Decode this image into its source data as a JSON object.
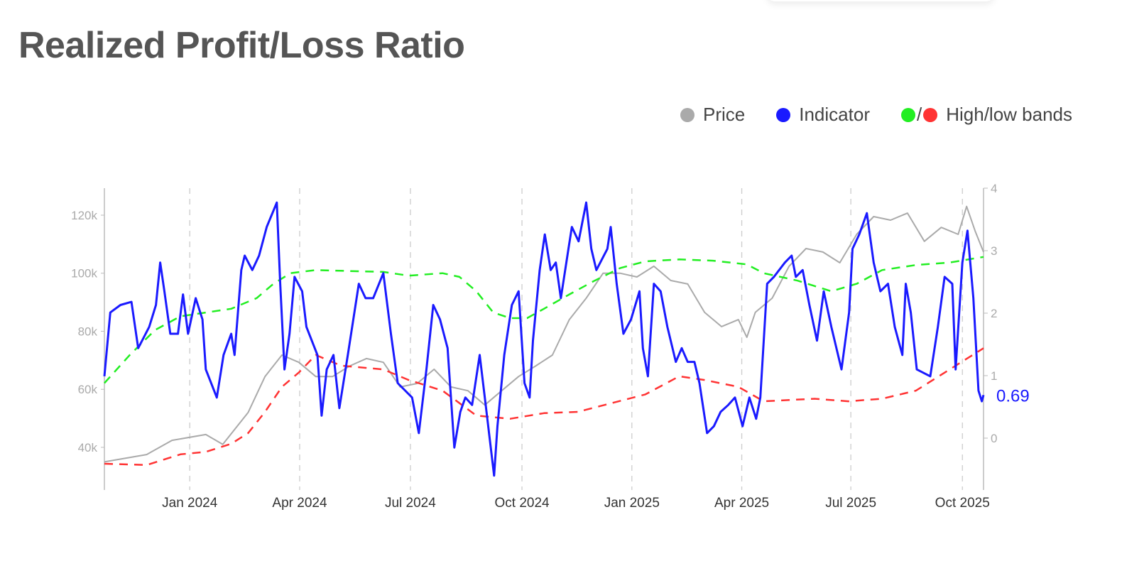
{
  "chart_data": {
    "type": "line",
    "title": "Realized Profit/Loss Ratio",
    "x_unit": "weeks since 2023-10-23",
    "xlim": [
      0,
      104
    ],
    "x_ticks": [
      {
        "x": 10.1,
        "label": "Jan 2024"
      },
      {
        "x": 23.1,
        "label": "Apr 2024"
      },
      {
        "x": 36.2,
        "label": "Jul 2024"
      },
      {
        "x": 49.4,
        "label": "Oct 2024"
      },
      {
        "x": 62.4,
        "label": "Jan 2025"
      },
      {
        "x": 75.4,
        "label": "Apr 2025"
      },
      {
        "x": 88.3,
        "label": "Jul 2025"
      },
      {
        "x": 101.5,
        "label": "Oct 2025"
      }
    ],
    "y_left": {
      "lim": [
        25.3,
        129.3
      ],
      "ticks": [
        {
          "v": 40,
          "label": "40k"
        },
        {
          "v": 60,
          "label": "60k"
        },
        {
          "v": 80,
          "label": "80k"
        },
        {
          "v": 100,
          "label": "100k"
        },
        {
          "v": 120,
          "label": "120k"
        }
      ]
    },
    "y_right": {
      "lim": [
        -0.83,
        4.0
      ],
      "ticks": [
        {
          "v": 0,
          "label": "0"
        },
        {
          "v": 1,
          "label": "1"
        },
        {
          "v": 2,
          "label": "2"
        },
        {
          "v": 3,
          "label": "3"
        },
        {
          "v": 4,
          "label": "4"
        }
      ]
    },
    "grid": "vertical dashed at x ticks",
    "legend": {
      "placement": "top-right",
      "entries": [
        {
          "label": "Price",
          "color": "#aaaaaa"
        },
        {
          "label": "Indicator",
          "color": "#1a1aff"
        },
        {
          "label": "High/low bands",
          "colors": [
            "#22ee22",
            "#ff3333"
          ],
          "separator": "/"
        }
      ]
    },
    "last_value_label": "0.69",
    "series": [
      {
        "name": "Price",
        "axis": "left",
        "color": "#aaaaaa",
        "dashed": false,
        "points": [
          [
            0,
            35
          ],
          [
            5,
            37.5
          ],
          [
            8,
            42.4
          ],
          [
            12,
            44.4
          ],
          [
            14,
            41
          ],
          [
            17,
            52
          ],
          [
            19,
            64.4
          ],
          [
            21,
            71.8
          ],
          [
            23,
            69.3
          ],
          [
            25,
            64.4
          ],
          [
            27,
            64.4
          ],
          [
            29,
            68
          ],
          [
            31,
            70.6
          ],
          [
            33,
            69.3
          ],
          [
            35,
            60.8
          ],
          [
            37,
            62
          ],
          [
            39,
            66.9
          ],
          [
            41,
            60.8
          ],
          [
            43,
            59.5
          ],
          [
            45,
            54.6
          ],
          [
            47,
            59.5
          ],
          [
            49,
            64.4
          ],
          [
            51,
            68
          ],
          [
            53,
            71.8
          ],
          [
            55,
            84
          ],
          [
            57,
            91.4
          ],
          [
            59,
            100
          ],
          [
            61,
            100
          ],
          [
            63,
            98.7
          ],
          [
            65,
            102.4
          ],
          [
            67,
            97.5
          ],
          [
            69,
            96.3
          ],
          [
            71,
            86.5
          ],
          [
            73,
            81.6
          ],
          [
            75,
            84
          ],
          [
            76,
            77.9
          ],
          [
            77,
            86.5
          ],
          [
            79,
            91.4
          ],
          [
            81,
            102.4
          ],
          [
            83,
            108.5
          ],
          [
            85,
            107.3
          ],
          [
            87,
            103.6
          ],
          [
            89,
            113.4
          ],
          [
            91,
            119.5
          ],
          [
            93,
            118.3
          ],
          [
            95,
            120.7
          ],
          [
            97,
            111
          ],
          [
            99,
            115.8
          ],
          [
            101,
            113.4
          ],
          [
            102,
            123
          ],
          [
            103,
            114.6
          ],
          [
            104,
            107.3
          ]
        ]
      },
      {
        "name": "High band",
        "axis": "right",
        "color": "#22ee22",
        "dashed": true,
        "points": [
          [
            0,
            0.88
          ],
          [
            3,
            1.33
          ],
          [
            6,
            1.73
          ],
          [
            9,
            1.95
          ],
          [
            12,
            2.01
          ],
          [
            15,
            2.07
          ],
          [
            18,
            2.24
          ],
          [
            20,
            2.47
          ],
          [
            22,
            2.64
          ],
          [
            25,
            2.69
          ],
          [
            30,
            2.67
          ],
          [
            33,
            2.66
          ],
          [
            36,
            2.6
          ],
          [
            40,
            2.64
          ],
          [
            42,
            2.58
          ],
          [
            44,
            2.35
          ],
          [
            46,
            2.01
          ],
          [
            48,
            1.92
          ],
          [
            50,
            1.92
          ],
          [
            52,
            2.07
          ],
          [
            55,
            2.3
          ],
          [
            58,
            2.52
          ],
          [
            61,
            2.72
          ],
          [
            64,
            2.83
          ],
          [
            68,
            2.86
          ],
          [
            72,
            2.84
          ],
          [
            76,
            2.78
          ],
          [
            78,
            2.64
          ],
          [
            82,
            2.52
          ],
          [
            86,
            2.35
          ],
          [
            89,
            2.47
          ],
          [
            92,
            2.69
          ],
          [
            96,
            2.77
          ],
          [
            100,
            2.81
          ],
          [
            104,
            2.9
          ]
        ]
      },
      {
        "name": "Low band",
        "axis": "right",
        "color": "#ff3333",
        "dashed": true,
        "points": [
          [
            0,
            -0.41
          ],
          [
            5,
            -0.43
          ],
          [
            9,
            -0.26
          ],
          [
            12,
            -0.22
          ],
          [
            15,
            -0.09
          ],
          [
            17,
            0.08
          ],
          [
            19,
            0.42
          ],
          [
            21,
            0.82
          ],
          [
            23,
            1.05
          ],
          [
            25,
            1.33
          ],
          [
            28,
            1.16
          ],
          [
            33,
            1.1
          ],
          [
            36,
            0.93
          ],
          [
            40,
            0.76
          ],
          [
            44,
            0.36
          ],
          [
            48,
            0.31
          ],
          [
            52,
            0.4
          ],
          [
            56,
            0.42
          ],
          [
            60,
            0.56
          ],
          [
            64,
            0.7
          ],
          [
            68,
            0.99
          ],
          [
            71,
            0.93
          ],
          [
            75,
            0.82
          ],
          [
            78,
            0.59
          ],
          [
            84,
            0.63
          ],
          [
            88,
            0.59
          ],
          [
            92,
            0.63
          ],
          [
            96,
            0.76
          ],
          [
            100,
            1.1
          ],
          [
            104,
            1.44
          ]
        ]
      },
      {
        "name": "Indicator",
        "axis": "right",
        "color": "#1a1aff",
        "dashed": false,
        "points": [
          [
            0,
            0.99
          ],
          [
            0.7,
            2.01
          ],
          [
            1.9,
            2.13
          ],
          [
            3.2,
            2.18
          ],
          [
            4,
            1.44
          ],
          [
            5.3,
            1.78
          ],
          [
            6.1,
            2.13
          ],
          [
            6.6,
            2.81
          ],
          [
            7.1,
            2.35
          ],
          [
            7.8,
            1.67
          ],
          [
            8.7,
            1.67
          ],
          [
            9.3,
            2.3
          ],
          [
            9.9,
            1.67
          ],
          [
            10.8,
            2.24
          ],
          [
            11.6,
            1.9
          ],
          [
            12,
            1.1
          ],
          [
            13.3,
            0.65
          ],
          [
            14.1,
            1.33
          ],
          [
            15,
            1.67
          ],
          [
            15.4,
            1.33
          ],
          [
            16.2,
            2.69
          ],
          [
            16.6,
            2.92
          ],
          [
            17.5,
            2.69
          ],
          [
            18.3,
            2.92
          ],
          [
            19.2,
            3.38
          ],
          [
            20.4,
            3.77
          ],
          [
            20.8,
            2.47
          ],
          [
            21.3,
            1.1
          ],
          [
            21.9,
            1.67
          ],
          [
            22.5,
            2.58
          ],
          [
            23.4,
            2.35
          ],
          [
            23.9,
            1.78
          ],
          [
            25.2,
            1.33
          ],
          [
            25.7,
            0.36
          ],
          [
            26.3,
            1.1
          ],
          [
            27.1,
            1.33
          ],
          [
            27.8,
            0.48
          ],
          [
            28.8,
            1.33
          ],
          [
            30.1,
            2.47
          ],
          [
            30.9,
            2.24
          ],
          [
            31.8,
            2.24
          ],
          [
            33,
            2.64
          ],
          [
            33.9,
            1.67
          ],
          [
            34.7,
            0.88
          ],
          [
            36.4,
            0.65
          ],
          [
            37.2,
            0.08
          ],
          [
            38.1,
            1.1
          ],
          [
            38.9,
            2.13
          ],
          [
            39.7,
            1.9
          ],
          [
            40.6,
            1.44
          ],
          [
            41.4,
            -0.15
          ],
          [
            42.1,
            0.42
          ],
          [
            42.7,
            0.65
          ],
          [
            43.5,
            0.53
          ],
          [
            44.4,
            1.33
          ],
          [
            45,
            0.65
          ],
          [
            46.1,
            -0.6
          ],
          [
            46.5,
            0.19
          ],
          [
            47.3,
            1.33
          ],
          [
            48.2,
            2.13
          ],
          [
            49,
            2.35
          ],
          [
            49.7,
            0.88
          ],
          [
            50.3,
            0.65
          ],
          [
            50.7,
            1.56
          ],
          [
            51.5,
            2.69
          ],
          [
            52.1,
            3.26
          ],
          [
            52.8,
            2.69
          ],
          [
            53.4,
            2.81
          ],
          [
            54,
            2.24
          ],
          [
            54.9,
            3.03
          ],
          [
            55.3,
            3.38
          ],
          [
            56.1,
            3.15
          ],
          [
            57,
            3.77
          ],
          [
            57.6,
            3.03
          ],
          [
            58.2,
            2.69
          ],
          [
            59.5,
            3.03
          ],
          [
            59.9,
            3.38
          ],
          [
            60.6,
            2.47
          ],
          [
            61.4,
            1.67
          ],
          [
            62.3,
            1.9
          ],
          [
            63.3,
            2.35
          ],
          [
            63.7,
            1.44
          ],
          [
            64.3,
            0.99
          ],
          [
            65,
            2.47
          ],
          [
            65.8,
            2.35
          ],
          [
            66.6,
            1.78
          ],
          [
            67.6,
            1.22
          ],
          [
            68.3,
            1.44
          ],
          [
            69,
            1.22
          ],
          [
            69.8,
            1.22
          ],
          [
            70.4,
            0.88
          ],
          [
            71.3,
            0.08
          ],
          [
            72.1,
            0.19
          ],
          [
            72.9,
            0.42
          ],
          [
            73.8,
            0.53
          ],
          [
            74.6,
            0.65
          ],
          [
            75.5,
            0.19
          ],
          [
            76.3,
            0.65
          ],
          [
            77.1,
            0.31
          ],
          [
            77.6,
            0.65
          ],
          [
            78.4,
            2.47
          ],
          [
            79.2,
            2.58
          ],
          [
            80.5,
            2.81
          ],
          [
            81.3,
            2.92
          ],
          [
            81.8,
            2.58
          ],
          [
            82.6,
            2.69
          ],
          [
            83.4,
            2.13
          ],
          [
            84.3,
            1.56
          ],
          [
            85.1,
            2.35
          ],
          [
            86,
            1.78
          ],
          [
            87.2,
            1.1
          ],
          [
            88.1,
            2.01
          ],
          [
            88.5,
            3.03
          ],
          [
            89.3,
            3.26
          ],
          [
            90.2,
            3.6
          ],
          [
            91,
            2.81
          ],
          [
            91.8,
            2.35
          ],
          [
            92.7,
            2.47
          ],
          [
            93.5,
            1.78
          ],
          [
            94.4,
            1.33
          ],
          [
            94.8,
            2.47
          ],
          [
            95.4,
            2.01
          ],
          [
            96.1,
            1.1
          ],
          [
            97.7,
            0.99
          ],
          [
            98.6,
            1.78
          ],
          [
            99.4,
            2.58
          ],
          [
            100.3,
            2.47
          ],
          [
            100.7,
            1.1
          ],
          [
            101.5,
            2.81
          ],
          [
            102.1,
            3.32
          ],
          [
            102.8,
            2.24
          ],
          [
            103.4,
            0.76
          ],
          [
            103.8,
            0.59
          ],
          [
            104,
            0.69
          ]
        ]
      }
    ]
  }
}
